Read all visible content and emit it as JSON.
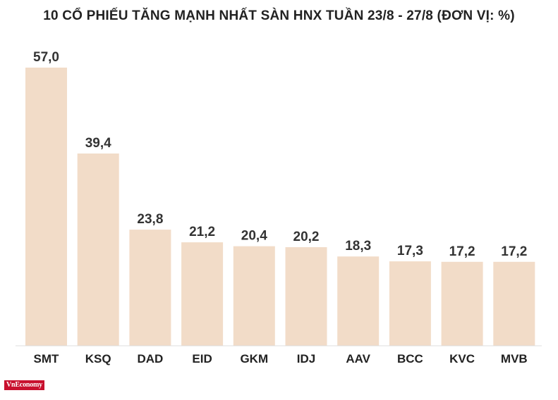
{
  "chart_data": {
    "type": "bar",
    "title": "10 CỔ PHIẾU TĂNG MẠNH NHẤT SÀN HNX TUẦN 23/8 - 27/8 (ĐƠN VỊ: %)",
    "categories": [
      "SMT",
      "KSQ",
      "DAD",
      "EID",
      "GKM",
      "IDJ",
      "AAV",
      "BCC",
      "KVC",
      "MVB"
    ],
    "values": [
      57.0,
      39.4,
      23.8,
      21.2,
      20.4,
      20.2,
      18.3,
      17.3,
      17.2,
      17.2
    ],
    "value_labels": [
      "57,0",
      "39,4",
      "23,8",
      "21,2",
      "20,4",
      "20,2",
      "18,3",
      "17,3",
      "17,2",
      "17,2"
    ],
    "bar_color": "#f2dcc8",
    "ylim": [
      0,
      57.0
    ],
    "grid": false,
    "legend": "none"
  },
  "brand": {
    "logo_text": "VnEconomy",
    "color": "#c8102e"
  }
}
